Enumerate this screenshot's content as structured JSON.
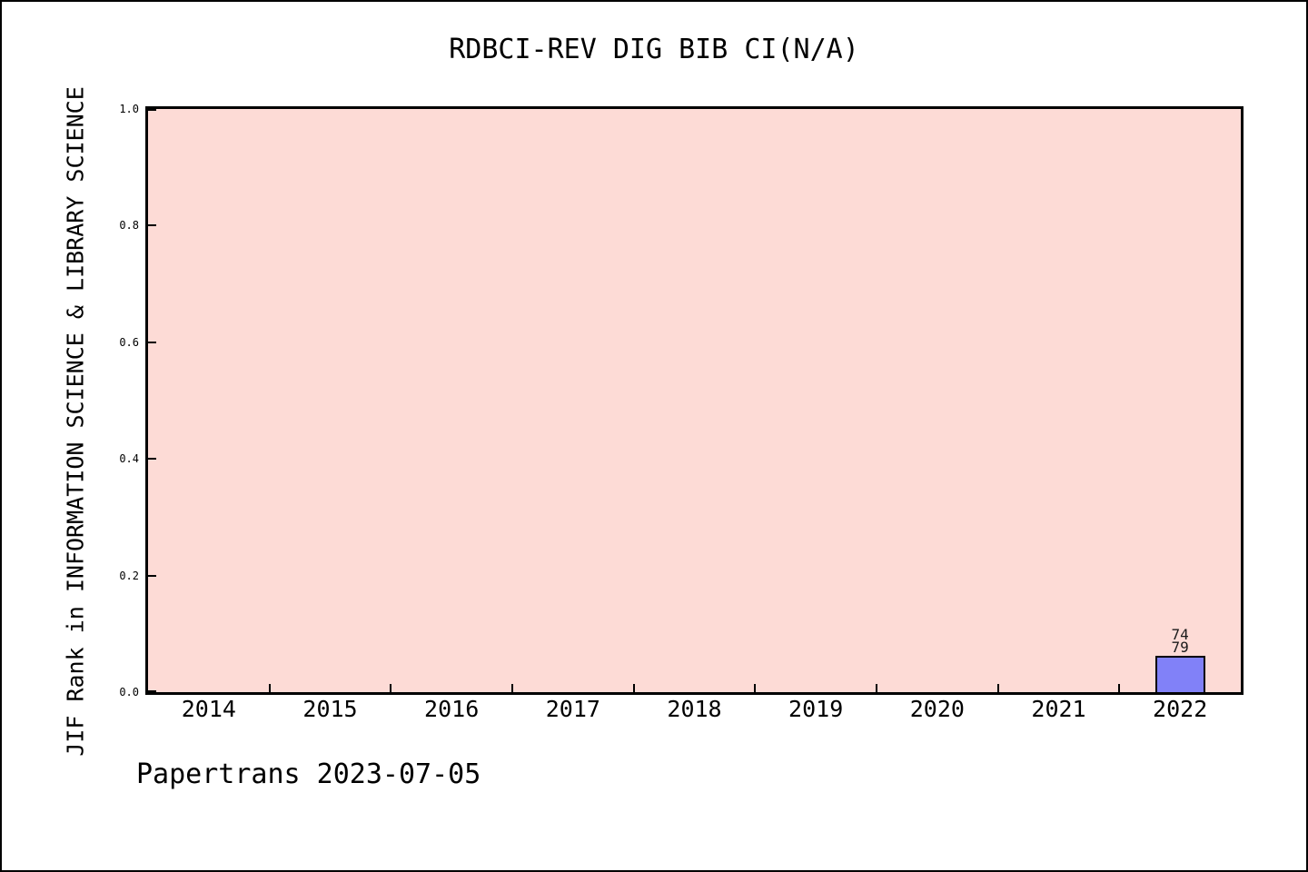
{
  "chart_data": {
    "type": "bar",
    "title": "RDBCI-REV DIG BIB CI(N/A)",
    "xlabel": "",
    "ylabel": "JIF Rank in INFORMATION SCIENCE & LIBRARY SCIENCE",
    "categories": [
      "2014",
      "2015",
      "2016",
      "2017",
      "2018",
      "2019",
      "2020",
      "2021",
      "2022"
    ],
    "values": [
      null,
      null,
      null,
      null,
      null,
      null,
      null,
      null,
      0.063
    ],
    "bar_value_labels": [
      null,
      null,
      null,
      null,
      null,
      null,
      null,
      null,
      [
        "74",
        "79"
      ]
    ],
    "yticks": [
      {
        "label": "0.0",
        "value": 0.0
      },
      {
        "label": "0.2",
        "value": 0.2
      },
      {
        "label": "0.4",
        "value": 0.4
      },
      {
        "label": "0.6",
        "value": 0.6
      },
      {
        "label": "0.8",
        "value": 0.8
      },
      {
        "label": "1.0",
        "value": 1.0
      }
    ],
    "ylim": [
      0,
      1
    ],
    "grid": false,
    "legend_position": "none",
    "colors": {
      "plot_bg": "#fddbd6",
      "bar_fill": "#8181f8",
      "bar_edge": "#000000",
      "axis": "#000000",
      "text": "#000000"
    }
  },
  "footer": {
    "text": "Papertrans 2023-07-05"
  }
}
